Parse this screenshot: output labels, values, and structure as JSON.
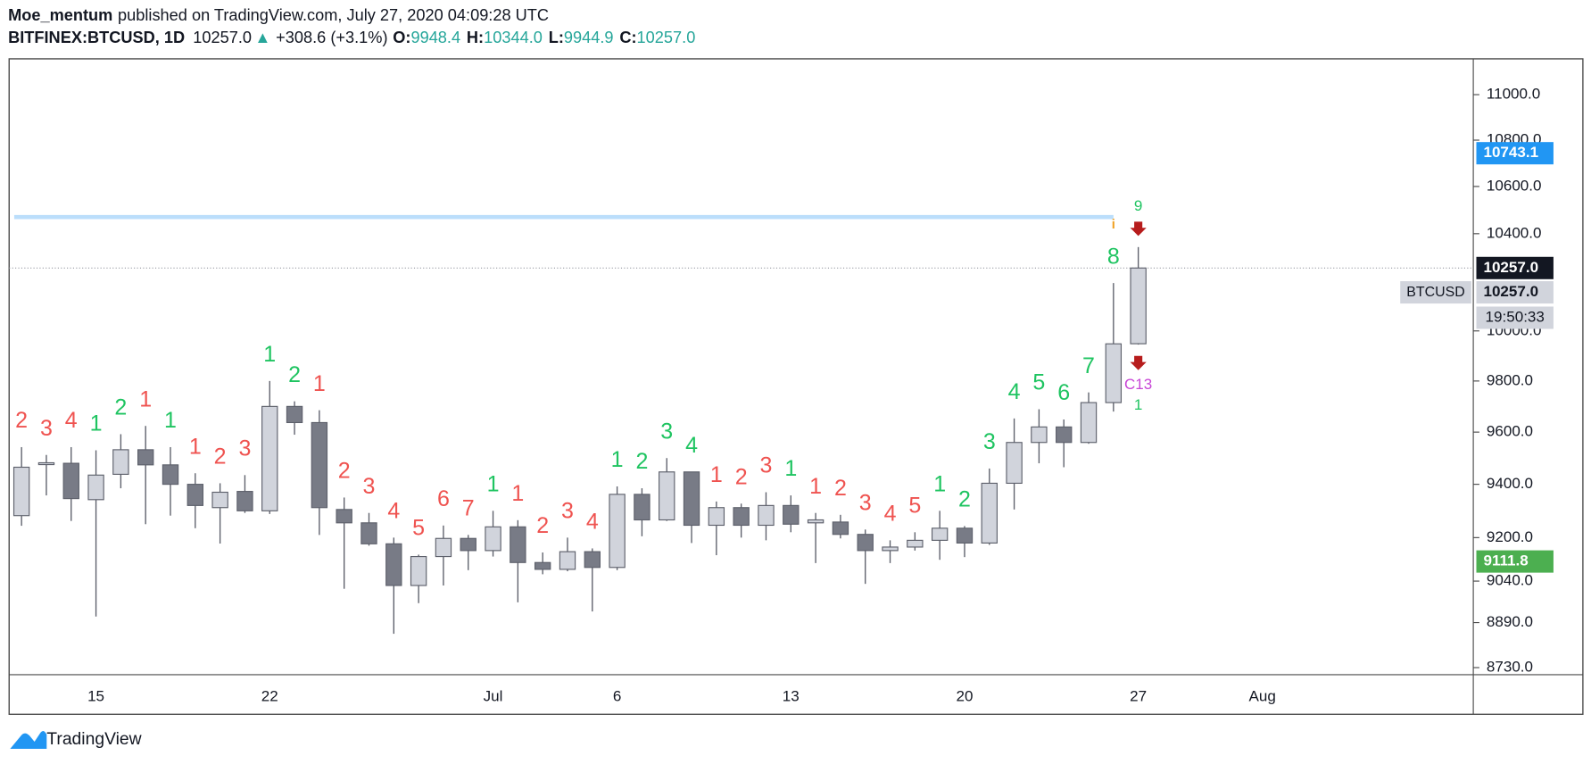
{
  "header": {
    "author": "Moe_mentum",
    "published": "published on TradingView.com, July 27, 2020 04:09:28 UTC",
    "symbol": "BITFINEX:BTCUSD, 1D",
    "last": "10257.0",
    "arrow": "▲",
    "change": "+308.6 (+3.1%)",
    "o_label": "O:",
    "o": "9948.4",
    "h_label": "H:",
    "h": "10344.0",
    "l_label": "L:",
    "l": "9944.9",
    "c_label": "C:",
    "c": "10257.0"
  },
  "footer": {
    "brand": "TradingView"
  },
  "chart_data": {
    "type": "candlestick",
    "log_scale": true,
    "grid": false,
    "up_color": "#d1d4dc",
    "down_color": "#787b86",
    "wick_color": "#5d606b",
    "categories": [
      null,
      null,
      null,
      "15",
      null,
      null,
      null,
      null,
      null,
      null,
      "22",
      null,
      null,
      null,
      null,
      null,
      null,
      null,
      null,
      "Jul",
      null,
      null,
      null,
      null,
      "6",
      null,
      null,
      null,
      null,
      null,
      null,
      "13",
      null,
      null,
      null,
      null,
      null,
      null,
      "20",
      null,
      null,
      null,
      null,
      null,
      null,
      "27",
      null,
      null,
      null,
      null,
      "Aug",
      null,
      null,
      null,
      null,
      null,
      null,
      null,
      null
    ],
    "open": [
      9282,
      9475,
      9480,
      9342,
      9438,
      9532,
      9474,
      9400,
      9312,
      9373,
      9300,
      9700,
      9637,
      9305,
      9255,
      9177,
      9024,
      9130,
      9197,
      9152,
      9240,
      9108,
      9083,
      9148,
      9090,
      9362,
      9266,
      9447,
      9246,
      9312,
      9246,
      9320,
      9255,
      9258,
      9212,
      9152,
      9165,
      9190,
      9235,
      9180,
      9404,
      9560,
      9620,
      9560,
      9715,
      9948.4,
      null,
      null,
      null,
      null,
      null,
      null,
      null,
      null,
      null,
      null,
      null,
      null,
      null
    ],
    "high": [
      9542,
      9512,
      9542,
      9530,
      9592,
      9624,
      9542,
      9442,
      9404,
      9435,
      9800,
      9720,
      9685,
      9350,
      9292,
      9200,
      9137,
      9245,
      9210,
      9300,
      9265,
      9145,
      9200,
      9160,
      9392,
      9385,
      9500,
      9447,
      9335,
      9327,
      9370,
      9358,
      9292,
      9285,
      9230,
      9190,
      9220,
      9300,
      9243,
      9460,
      9653,
      9689,
      9649,
      9755,
      10195,
      10344,
      null,
      null,
      null,
      null,
      null,
      null,
      null,
      null,
      null,
      null,
      null,
      null,
      null
    ],
    "low": [
      9244,
      9358,
      9262,
      8912,
      9385,
      9250,
      9282,
      9235,
      9178,
      9292,
      9288,
      9590,
      9210,
      9012,
      9170,
      8850,
      8960,
      9024,
      9080,
      9130,
      8963,
      9065,
      9076,
      8930,
      9080,
      9205,
      9262,
      9180,
      9135,
      9200,
      9190,
      9220,
      9106,
      9197,
      9030,
      9106,
      9152,
      9118,
      9128,
      9173,
      9305,
      9480,
      9465,
      9555,
      9680,
      9944.9,
      null,
      null,
      null,
      null,
      null,
      null,
      null,
      null,
      null,
      null,
      null,
      null,
      null
    ],
    "close": [
      9465,
      9482,
      9346,
      9435,
      9532,
      9474,
      9400,
      9320,
      9370,
      9300,
      9700,
      9637,
      9312,
      9255,
      9177,
      9024,
      9130,
      9197,
      9152,
      9240,
      9108,
      9083,
      9148,
      9090,
      9362,
      9266,
      9447,
      9246,
      9312,
      9246,
      9320,
      9250,
      9266,
      9212,
      9152,
      9165,
      9190,
      9235,
      9180,
      9404,
      9560,
      9620,
      9560,
      9715,
      9948,
      10257,
      null,
      null,
      null,
      null,
      null,
      null,
      null,
      null,
      null,
      null,
      null,
      null,
      null
    ],
    "td_counts": [
      2,
      3,
      4,
      1,
      2,
      1,
      1,
      1,
      2,
      3,
      1,
      2,
      1,
      2,
      3,
      4,
      5,
      6,
      7,
      1,
      1,
      2,
      3,
      4,
      1,
      2,
      3,
      4,
      1,
      2,
      3,
      1,
      1,
      2,
      3,
      4,
      5,
      1,
      2,
      3,
      4,
      5,
      6,
      7,
      8,
      9,
      null,
      null,
      null,
      null,
      null,
      null,
      null,
      null,
      null,
      null,
      null,
      null,
      null
    ],
    "td_colors": [
      "#ef5350",
      "#ef5350",
      "#ef5350",
      "#1fc461",
      "#1fc461",
      "#ef5350",
      "#1fc461",
      "#ef5350",
      "#ef5350",
      "#ef5350",
      "#1fc461",
      "#1fc461",
      "#ef5350",
      "#ef5350",
      "#ef5350",
      "#ef5350",
      "#ef5350",
      "#ef5350",
      "#ef5350",
      "#1fc461",
      "#ef5350",
      "#ef5350",
      "#ef5350",
      "#ef5350",
      "#1fc461",
      "#1fc461",
      "#1fc461",
      "#1fc461",
      "#ef5350",
      "#ef5350",
      "#ef5350",
      "#1fc461",
      "#ef5350",
      "#ef5350",
      "#ef5350",
      "#ef5350",
      "#ef5350",
      "#1fc461",
      "#1fc461",
      "#1fc461",
      "#1fc461",
      "#1fc461",
      "#1fc461",
      "#1fc461",
      "#1fc461",
      "#1fc461",
      null,
      null,
      null,
      null,
      null,
      null,
      null,
      null,
      null,
      null,
      null,
      null,
      null
    ],
    "below_labels": [
      {
        "text": "C13",
        "color": "#c846d6"
      },
      {
        "text": "1",
        "color": "#1fc461"
      }
    ],
    "signal_color": "#b71c1c",
    "info_marker": {
      "text": "i",
      "color": "#f0a020"
    },
    "horizontal_line": {
      "value": 10470,
      "color": "#bbdefb"
    },
    "ylim": [
      8705,
      11160
    ],
    "yticks": [
      {
        "value": 11000,
        "label": "11000.0"
      },
      {
        "value": 10800,
        "label": "10800.0"
      },
      {
        "value": 10600,
        "label": "10600.0"
      },
      {
        "value": 10400,
        "label": "10400.0"
      },
      {
        "value": 10000,
        "label": "10000.0"
      },
      {
        "value": 9800,
        "label": "9800.0"
      },
      {
        "value": 9600,
        "label": "9600.0"
      },
      {
        "value": 9400,
        "label": "9400.0"
      },
      {
        "value": 9200,
        "label": "9200.0"
      },
      {
        "value": 9040,
        "label": "9040.0"
      },
      {
        "value": 8890,
        "label": "8890.0"
      },
      {
        "value": 8730,
        "label": "8730.0"
      }
    ],
    "price_labels": [
      {
        "value": 10743.1,
        "label": "10743.1",
        "color": "#2196f3",
        "text_color": "#ffffff"
      },
      {
        "value": 10257,
        "label": "10257.0",
        "color": "#131722",
        "text_color": "#ffffff",
        "dotted_line": true
      },
      {
        "value": 10257,
        "label": "10257.0",
        "color": "#d1d4dc",
        "text_color": "#131722",
        "tag": "BTCUSD",
        "timer": "19:50:33"
      },
      {
        "value": 9111.8,
        "label": "9111.8",
        "color": "#4caf50",
        "text_color": "#ffffff"
      }
    ]
  }
}
